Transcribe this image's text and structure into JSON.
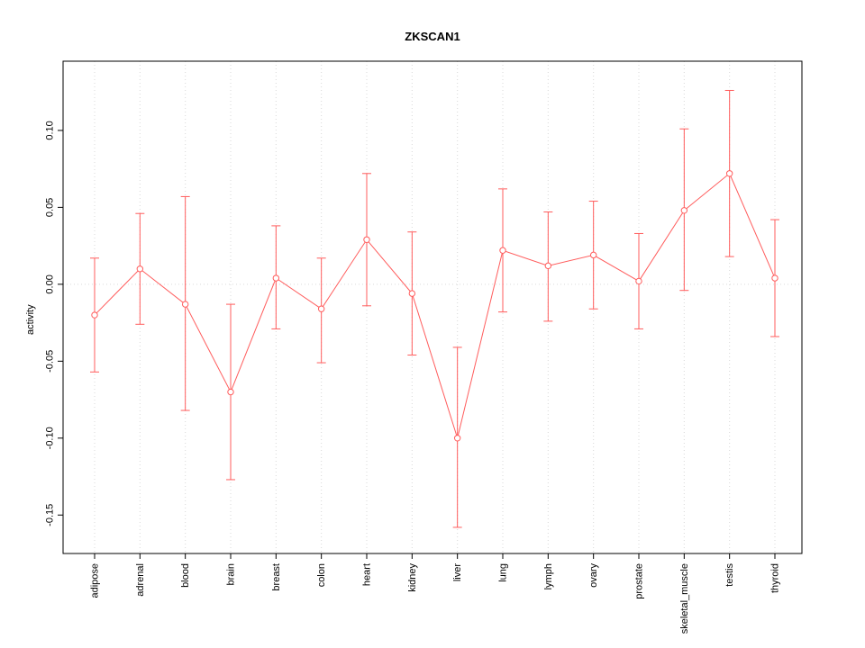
{
  "chart_data": {
    "type": "line",
    "title": "ZKSCAN1",
    "xlabel": "",
    "ylabel": "activity",
    "ylim": [
      -0.175,
      0.145
    ],
    "yticks": [
      -0.15,
      -0.1,
      -0.05,
      0.0,
      0.05,
      0.1
    ],
    "ytick_labels": [
      "-0.15",
      "-0.10",
      "-0.05",
      "0.00",
      "0.05",
      "0.10"
    ],
    "categories": [
      "adipose",
      "adrenal",
      "blood",
      "brain",
      "breast",
      "colon",
      "heart",
      "kidney",
      "liver",
      "lung",
      "lymph",
      "ovary",
      "prostate",
      "skeletal_muscle",
      "testis",
      "thyroid"
    ],
    "series": [
      {
        "name": "activity",
        "color": "#ff5c5c",
        "marker": "open-circle",
        "values": [
          -0.02,
          0.01,
          -0.013,
          -0.07,
          0.004,
          -0.016,
          0.029,
          -0.006,
          -0.1,
          0.022,
          0.012,
          0.019,
          0.002,
          0.048,
          0.072,
          0.004
        ],
        "lower": [
          -0.057,
          -0.026,
          -0.082,
          -0.127,
          -0.029,
          -0.051,
          -0.014,
          -0.046,
          -0.158,
          -0.018,
          -0.024,
          -0.016,
          -0.029,
          -0.004,
          0.018,
          -0.034
        ],
        "upper": [
          0.017,
          0.046,
          0.057,
          -0.013,
          0.038,
          0.017,
          0.072,
          0.034,
          -0.041,
          0.062,
          0.047,
          0.054,
          0.033,
          0.101,
          0.126,
          0.042
        ]
      }
    ],
    "grid": {
      "vertical": "dotted-per-category",
      "horizontal": "dotted-at-zero",
      "color": "#d9d9d9"
    },
    "legend": "none",
    "error_bars": true,
    "plot_bg": "#ffffff",
    "box_color": "#000000"
  }
}
